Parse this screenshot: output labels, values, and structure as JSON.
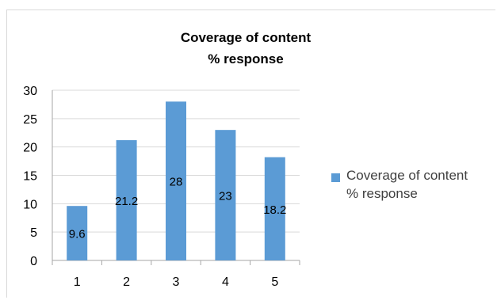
{
  "chart_data": {
    "type": "bar",
    "title_lines": [
      "Coverage of content",
      "% response"
    ],
    "categories": [
      "1",
      "2",
      "3",
      "4",
      "5"
    ],
    "series": [
      {
        "name_lines": [
          "Coverage of content",
          "% response"
        ],
        "values": [
          9.6,
          21.2,
          28,
          23,
          18.2
        ],
        "data_labels": [
          "9.6",
          "21.2",
          "28",
          "23",
          "18.2"
        ],
        "color": "#5b9bd5"
      }
    ],
    "ylim": [
      0,
      30
    ],
    "yticks": [
      "0",
      "5",
      "10",
      "15",
      "20",
      "25",
      "30"
    ],
    "grid": true,
    "legend_position": "right"
  }
}
